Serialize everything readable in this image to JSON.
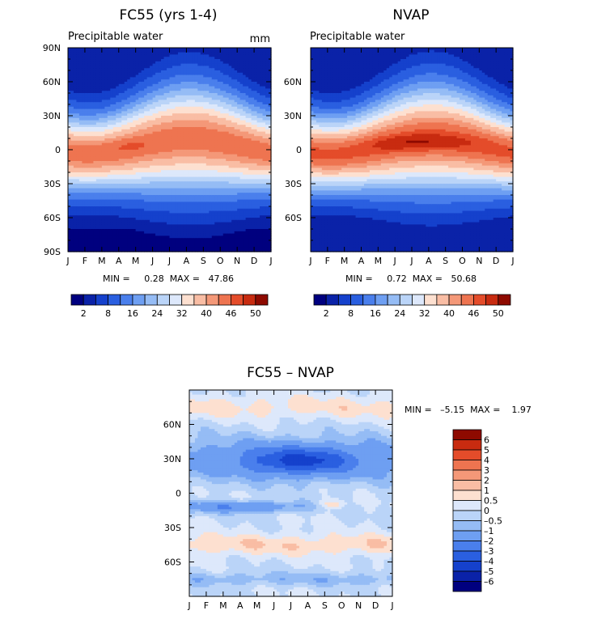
{
  "chart_data": [
    {
      "type": "heatmap",
      "title": "FC55 (yrs 1-4)",
      "subtitle": "Precipitable water",
      "units": "mm",
      "x_ticks": [
        "J",
        "F",
        "M",
        "A",
        "M",
        "J",
        "J",
        "A",
        "S",
        "O",
        "N",
        "D",
        "J"
      ],
      "y_ticks": [
        "90N",
        "60N",
        "30N",
        "0",
        "30S",
        "60S",
        "90S"
      ],
      "y_range": [
        -90,
        90
      ],
      "min": 0.28,
      "max": 47.86,
      "stats_label": "MIN =     0.28  MAX =   47.86",
      "colorbar": {
        "levels": [
          2,
          5,
          8,
          12,
          16,
          20,
          24,
          28,
          32,
          36,
          40,
          43,
          46,
          48,
          50
        ],
        "tick_labels": [
          "2",
          "8",
          "16",
          "24",
          "32",
          "40",
          "46",
          "50"
        ],
        "colors": [
          "#00007f",
          "#0a22a8",
          "#1541cc",
          "#2a5fe0",
          "#4a7fec",
          "#6e9ff2",
          "#95bcf5",
          "#bad4f8",
          "#dde8fb",
          "#fde0d0",
          "#f9bda4",
          "#f49878",
          "#ee7450",
          "#e44c2a",
          "#c82b10",
          "#8e0a00"
        ]
      },
      "data_description": "zonal-mean precipitable water by month, values in mm"
    },
    {
      "type": "heatmap",
      "title": "NVAP",
      "subtitle": "Precipitable water",
      "x_ticks": [
        "J",
        "F",
        "M",
        "A",
        "M",
        "J",
        "J",
        "A",
        "S",
        "O",
        "N",
        "D",
        "J"
      ],
      "y_ticks": [
        "60N",
        "30N",
        "0",
        "30S",
        "60S"
      ],
      "y_range": [
        -90,
        90
      ],
      "min": 0.72,
      "max": 50.68,
      "stats_label": "MIN =     0.72  MAX =   50.68",
      "colorbar": {
        "levels": [
          2,
          5,
          8,
          12,
          16,
          20,
          24,
          28,
          32,
          36,
          40,
          43,
          46,
          48,
          50
        ],
        "tick_labels": [
          "2",
          "8",
          "16",
          "24",
          "32",
          "40",
          "46",
          "50"
        ],
        "colors": [
          "#00007f",
          "#0a22a8",
          "#1541cc",
          "#2a5fe0",
          "#4a7fec",
          "#6e9ff2",
          "#95bcf5",
          "#bad4f8",
          "#dde8fb",
          "#fde0d0",
          "#f9bda4",
          "#f49878",
          "#ee7450",
          "#e44c2a",
          "#c82b10",
          "#8e0a00"
        ]
      }
    },
    {
      "type": "heatmap",
      "title": "FC55 – NVAP",
      "x_ticks": [
        "J",
        "F",
        "M",
        "A",
        "M",
        "J",
        "J",
        "A",
        "S",
        "O",
        "N",
        "D",
        "J"
      ],
      "y_ticks": [
        "60N",
        "30N",
        "0",
        "30S",
        "60S"
      ],
      "y_range": [
        -90,
        90
      ],
      "min": -5.15,
      "max": 1.97,
      "stats_label": "MIN =   –5.15  MAX =    1.97",
      "colorbar": {
        "levels": [
          -6,
          -5,
          -4,
          -3,
          -2,
          -1,
          -0.5,
          0,
          0.5,
          1,
          2,
          3,
          4,
          5,
          6
        ],
        "tick_labels": [
          "6",
          "5",
          "4",
          "3",
          "2",
          "1",
          "0.5",
          "0",
          "–0.5",
          "–1",
          "–2",
          "–3",
          "–4",
          "–5",
          "–6"
        ],
        "colors": [
          "#00007f",
          "#0a22a8",
          "#1541cc",
          "#2a5fe0",
          "#4a7fec",
          "#6e9ff2",
          "#95bcf5",
          "#bad4f8",
          "#dde8fb",
          "#fde0d0",
          "#f9bda4",
          "#f49878",
          "#ee7450",
          "#e44c2a",
          "#c82b10",
          "#8e0a00"
        ]
      }
    }
  ]
}
